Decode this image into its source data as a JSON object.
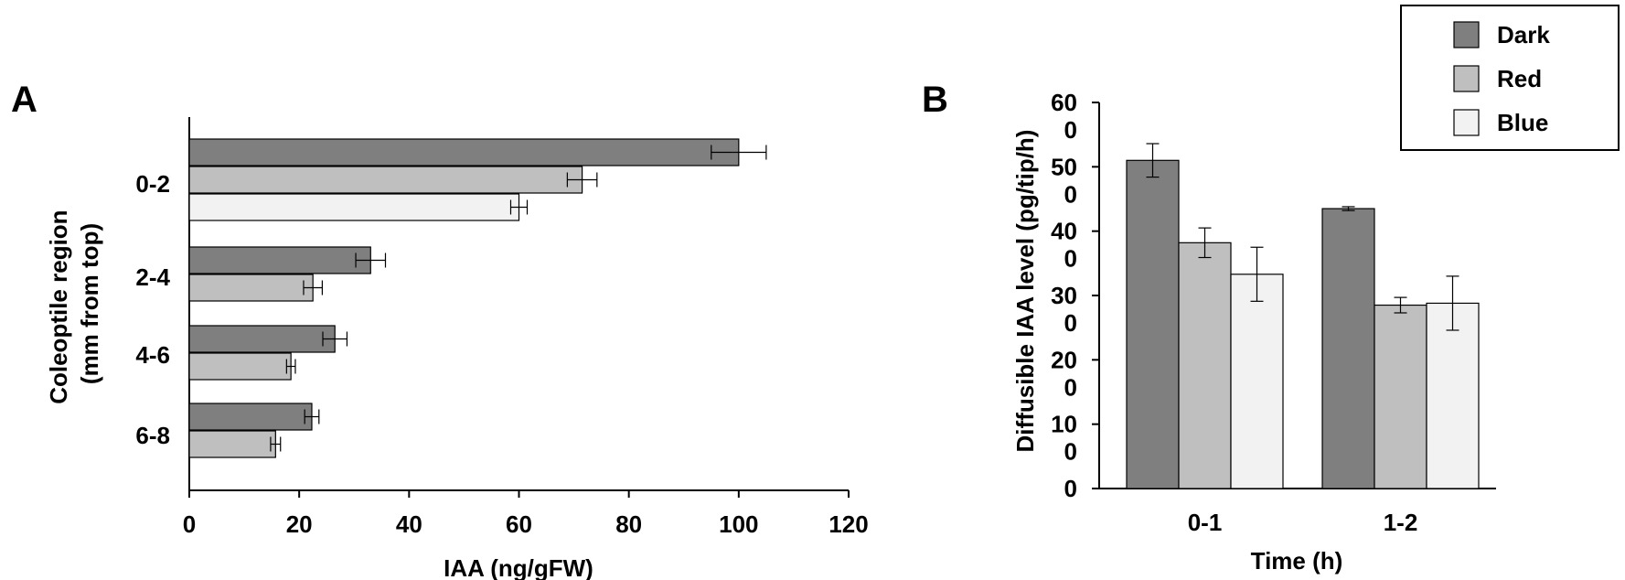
{
  "chart_data": [
    {
      "panel_label": "A",
      "type": "bar",
      "orientation": "horizontal",
      "categories": [
        "0-2",
        "2-4",
        "4-6",
        "6-8"
      ],
      "series": [
        {
          "name": "Dark",
          "values": [
            100,
            33,
            26.5,
            22.3
          ],
          "errors": [
            5,
            2.7,
            2.2,
            1.3
          ]
        },
        {
          "name": "Red",
          "values": [
            71.5,
            22.5,
            18.5,
            15.7
          ],
          "errors": [
            2.7,
            1.7,
            0.8,
            0.9
          ]
        },
        {
          "name": "Blue",
          "values": [
            60,
            null,
            null,
            null
          ],
          "errors": [
            1.5,
            null,
            null,
            null
          ]
        }
      ],
      "xlabel": "IAA (ng/gFW)",
      "ylabel_lines": [
        "Coleoptile region",
        "(mm from top)"
      ],
      "xlim": [
        0,
        120
      ],
      "xticks": [
        "0",
        "20",
        "40",
        "60",
        "80",
        "100",
        "120"
      ],
      "grid": false
    },
    {
      "panel_label": "B",
      "type": "bar",
      "orientation": "vertical",
      "categories": [
        "0-1",
        "1-2"
      ],
      "series": [
        {
          "name": "Dark",
          "values": [
            51,
            43.5
          ],
          "errors": [
            2.6,
            0.3
          ]
        },
        {
          "name": "Red",
          "values": [
            38.2,
            28.5
          ],
          "errors": [
            2.3,
            1.2
          ]
        },
        {
          "name": "Blue",
          "values": [
            33.3,
            28.8
          ],
          "errors": [
            4.2,
            4.2
          ]
        }
      ],
      "xlabel": "Time (h)",
      "ylabel": "Diffusible IAA level (pg/tip/h)",
      "ylim": [
        0,
        60
      ],
      "yticks": [
        "0",
        "10\n0",
        "20\n0",
        "30\n0",
        "40\n0",
        "50\n0",
        "60\n0"
      ],
      "grid": false
    }
  ],
  "legend": {
    "placement": "top-right",
    "items": [
      {
        "name": "Dark",
        "color": "#7f7f7f"
      },
      {
        "name": "Red",
        "color": "#bfbfbf"
      },
      {
        "name": "Blue",
        "color": "#f2f2f2"
      }
    ]
  }
}
